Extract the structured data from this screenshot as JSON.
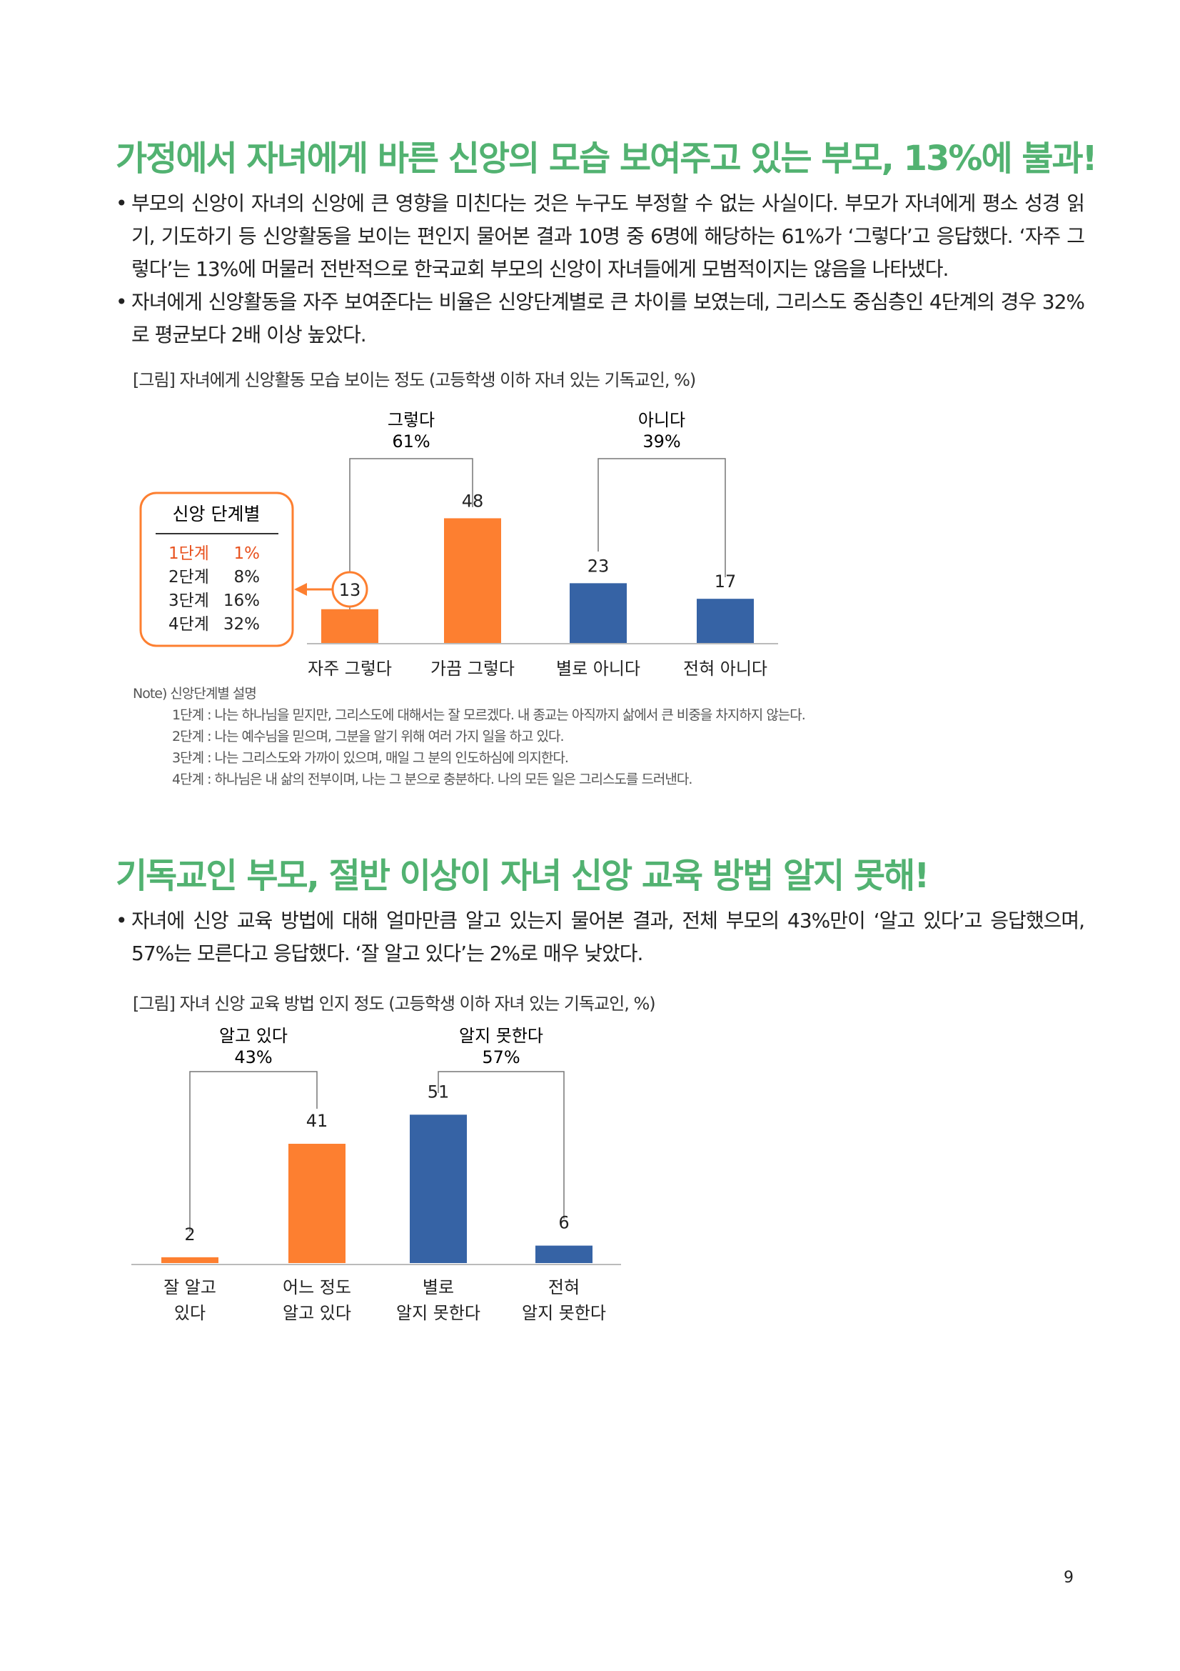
{
  "section1": {
    "heading": "가정에서 자녀에게 바른 신앙의 모습 보여주고 있는 부모, 13%에 불과!",
    "bullets": [
      "부모의 신앙이 자녀의 신앙에 큰 영향을 미친다는 것은 누구도 부정할 수 없는 사실이다. 부모가 자녀에게 평소 성경 읽기, 기도하기 등 신앙활동을 보이는 편인지 물어본 결과 10명 중 6명에 해당하는 61%가 ‘그렇다’고 응답했다. ‘자주 그렇다’는 13%에 머물러 전반적으로 한국교회 부모의 신앙이 자녀들에게 모범적이지는 않음을 나타냈다.",
      "자녀에게 신앙활동을 자주 보여준다는 비율은 신앙단계별로 큰 차이를 보였는데, 그리스도 중심층인 4단계의 경우 32%로 평균보다 2배 이상 높았다."
    ],
    "caption": "[그림] 자녀에게 신앙활동 모습 보이는 정도 (고등학생 이하 자녀 있는 기독교인, %)",
    "group_yes": {
      "label": "그렇다",
      "pct": "61%"
    },
    "group_no": {
      "label": "아니다",
      "pct": "39%"
    },
    "stage_box": {
      "title": "신앙 단계별",
      "rows": [
        {
          "stage": "1단계",
          "value": "1%"
        },
        {
          "stage": "2단계",
          "value": "8%"
        },
        {
          "stage": "3단계",
          "value": "16%"
        },
        {
          "stage": "4단계",
          "value": "32%"
        }
      ],
      "highlight_color": "#e8521f"
    },
    "note": {
      "title": "Note) 신앙단계별 설명",
      "items": [
        "1단계 : 나는 하나님을 믿지만, 그리스도에 대해서는 잘 모르겠다. 내 종교는 아직까지 삶에서 큰 비중을 차지하지 않는다.",
        "2단계 : 나는 예수님을 믿으며, 그분을 알기 위해 여러 가지 일을 하고 있다.",
        "3단계 : 나는 그리스도와 가까이 있으며, 매일 그 분의 인도하심에 의지한다.",
        "4단계 : 하나님은 내 삶의 전부이며, 나는 그 분으로 충분하다. 나의 모든 일은 그리스도를 드러낸다."
      ]
    }
  },
  "section2": {
    "heading": "기독교인 부모, 절반 이상이 자녀 신앙 교육 방법 알지 못해!",
    "bullets": [
      "자녀에 신앙 교육 방법에 대해 얼마만큼 알고 있는지 물어본 결과, 전체 부모의 43%만이 ‘알고 있다’고 응답했으며, 57%는 모른다고 응답했다. ‘잘 알고 있다’는 2%로 매우 낮았다."
    ],
    "caption": "[그림] 자녀 신앙 교육 방법 인지 정도 (고등학생 이하 자녀 있는 기독교인, %)",
    "group_yes": {
      "label": "알고 있다",
      "pct": "43%"
    },
    "group_no": {
      "label": "알지 못한다",
      "pct": "57%"
    }
  },
  "colors": {
    "heading": "#52b271",
    "orange": "#fd7f30",
    "blue": "#3663a5",
    "stage_highlight": "#e8521f"
  },
  "chart_data": [
    {
      "type": "bar",
      "categories": [
        "자주 그렇다",
        "가끔 그렇다",
        "별로 아니다",
        "전혀 아니다"
      ],
      "values": [
        13,
        48,
        23,
        17
      ],
      "colors": [
        "#fd7f30",
        "#fd7f30",
        "#3663a5",
        "#3663a5"
      ],
      "title": "",
      "ylim": [
        0,
        55
      ]
    },
    {
      "type": "bar",
      "categories": [
        [
          "잘 알고",
          "있다"
        ],
        [
          "어느 정도",
          "알고 있다"
        ],
        [
          "별로",
          "알지 못한다"
        ],
        [
          "전혀",
          "알지 못한다"
        ]
      ],
      "values": [
        2,
        41,
        51,
        6
      ],
      "colors": [
        "#fd7f30",
        "#fd7f30",
        "#3663a5",
        "#3663a5"
      ],
      "title": "",
      "ylim": [
        0,
        55
      ]
    }
  ],
  "page_number": "9"
}
